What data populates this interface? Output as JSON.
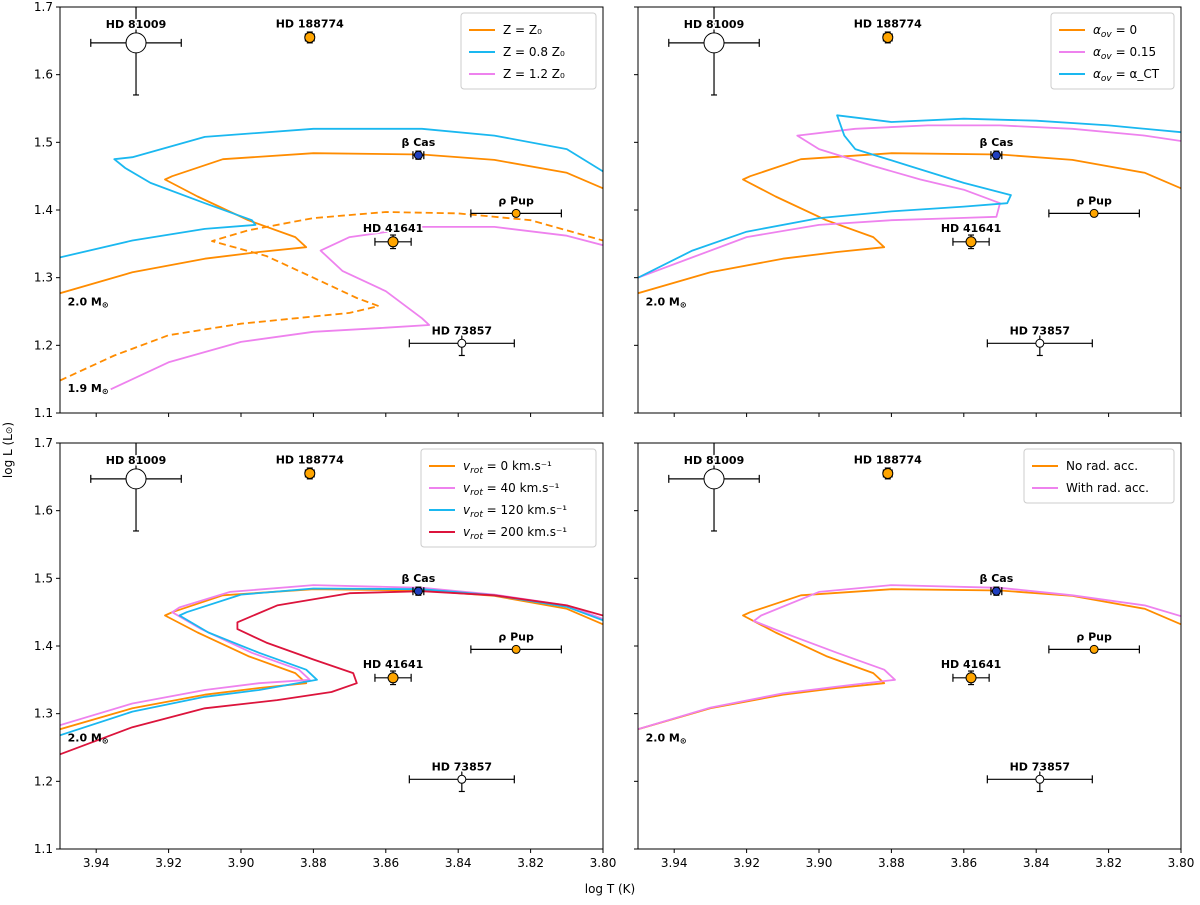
{
  "figure": {
    "xlabel": "log T (K)",
    "ylabel": "log L (L",
    "ylabel_symbol": "⊙",
    "ylabel_close": ")"
  },
  "chart_data": [
    {
      "type": "line",
      "panel": "top-left",
      "xlim": [
        3.95,
        3.8
      ],
      "ylim": [
        1.1,
        1.7
      ],
      "xticks": [
        3.94,
        3.92,
        3.9,
        3.88,
        3.86,
        3.84,
        3.82,
        3.8
      ],
      "yticks": [
        1.1,
        1.2,
        1.3,
        1.4,
        1.5,
        1.6,
        1.7
      ],
      "show_xticklabels": false,
      "show_yticklabels": true,
      "legend": {
        "position": "top-right",
        "entries": [
          {
            "series": 0,
            "label": "Z = Z₀"
          },
          {
            "series": 1,
            "label": "Z = 0.8 Z₀"
          },
          {
            "series": 2,
            "label": "Z = 1.2 Z₀"
          }
        ]
      },
      "series": [
        {
          "name": "Z = Z0 (2.0 Msun)",
          "color": "#ff8c00",
          "dash": false,
          "x": [
            3.95,
            3.93,
            3.91,
            3.895,
            3.882,
            3.885,
            3.898,
            3.912,
            3.921,
            3.919,
            3.905,
            3.88,
            3.85,
            3.83,
            3.81,
            3.8
          ],
          "y": [
            1.277,
            1.308,
            1.328,
            1.338,
            1.345,
            1.36,
            1.385,
            1.42,
            1.445,
            1.45,
            1.475,
            1.484,
            1.482,
            1.474,
            1.455,
            1.432
          ]
        },
        {
          "name": "Z = 0.8 Z0",
          "color": "#1ab8f0",
          "dash": false,
          "x": [
            3.95,
            3.93,
            3.91,
            3.896,
            3.897,
            3.91,
            3.925,
            3.932,
            3.935,
            3.93,
            3.91,
            3.88,
            3.85,
            3.83,
            3.81,
            3.8
          ],
          "y": [
            1.33,
            1.355,
            1.372,
            1.378,
            1.385,
            1.41,
            1.44,
            1.462,
            1.475,
            1.478,
            1.508,
            1.52,
            1.52,
            1.51,
            1.49,
            1.457
          ]
        },
        {
          "name": "Z = 1.2 Z0 (1.9 Msun)",
          "color": "#ee82ee",
          "dash": false,
          "x": [
            3.936,
            3.92,
            3.9,
            3.88,
            3.86,
            3.848,
            3.85,
            3.86,
            3.872,
            3.878,
            3.87,
            3.85,
            3.83,
            3.81,
            3.8
          ],
          "y": [
            1.135,
            1.175,
            1.205,
            1.22,
            1.226,
            1.23,
            1.24,
            1.28,
            1.31,
            1.34,
            1.36,
            1.375,
            1.375,
            1.362,
            1.348
          ]
        },
        {
          "name": "Z = Z0 (1.9 Msun)",
          "color": "#ff8c00",
          "dash": true,
          "x": [
            3.95,
            3.935,
            3.92,
            3.9,
            3.885,
            3.87,
            3.862,
            3.868,
            3.88,
            3.893,
            3.908,
            3.898,
            3.88,
            3.86,
            3.84,
            3.82,
            3.8
          ],
          "y": [
            1.148,
            1.185,
            1.215,
            1.232,
            1.24,
            1.248,
            1.258,
            1.27,
            1.3,
            1.332,
            1.354,
            1.37,
            1.388,
            1.397,
            1.395,
            1.385,
            1.355
          ]
        }
      ],
      "stars": [
        {
          "name": "HD 81009",
          "x": 3.929,
          "y": 1.647,
          "xerr": 0.0125,
          "yerr": 0.077,
          "color": "#ffffff",
          "r": 10
        },
        {
          "name": "HD 188774",
          "x": 3.881,
          "y": 1.655,
          "xerr": 0.0012,
          "yerr": 0.008,
          "color": "#ffa500",
          "r": 5
        },
        {
          "name": "β Cas",
          "x": 3.851,
          "y": 1.481,
          "xerr": 0.0015,
          "yerr": 0.006,
          "color": "#1f3fbf",
          "r": 4
        },
        {
          "name": "ρ Pup",
          "x": 3.824,
          "y": 1.395,
          "xerr": 0.0125,
          "yerr": 0.0,
          "color": "#ffa500",
          "r": 4
        },
        {
          "name": "HD 41641",
          "x": 3.858,
          "y": 1.353,
          "xerr": 0.005,
          "yerr": 0.01,
          "color": "#ffa500",
          "r": 5
        },
        {
          "name": "HD 73857",
          "x": 3.839,
          "y": 1.203,
          "xerr": 0.0145,
          "yerr": 0.018,
          "color": "#ffffff",
          "r": 4
        }
      ],
      "mass_labels": [
        {
          "text": "2.0 M",
          "x": 3.949,
          "y": 1.265
        },
        {
          "text": "1.9 M",
          "x": 3.949,
          "y": 1.137
        }
      ]
    },
    {
      "type": "line",
      "panel": "top-right",
      "xlim": [
        3.95,
        3.8
      ],
      "ylim": [
        1.1,
        1.7
      ],
      "xticks": [
        3.94,
        3.92,
        3.9,
        3.88,
        3.86,
        3.84,
        3.82,
        3.8
      ],
      "yticks": [
        1.1,
        1.2,
        1.3,
        1.4,
        1.5,
        1.6,
        1.7
      ],
      "show_xticklabels": false,
      "show_yticklabels": false,
      "legend": {
        "position": "top-right",
        "entries": [
          {
            "series": 0,
            "label": "α_ov = 0"
          },
          {
            "series": 1,
            "label": "α_ov = 0.15"
          },
          {
            "series": 2,
            "label": "α_ov = α_CT"
          }
        ]
      },
      "series": [
        {
          "name": "alpha_ov = 0",
          "color": "#ff8c00",
          "dash": false,
          "x": [
            3.95,
            3.93,
            3.91,
            3.895,
            3.882,
            3.885,
            3.898,
            3.912,
            3.921,
            3.919,
            3.905,
            3.88,
            3.85,
            3.83,
            3.81,
            3.8
          ],
          "y": [
            1.277,
            1.308,
            1.328,
            1.338,
            1.345,
            1.36,
            1.385,
            1.42,
            1.445,
            1.45,
            1.475,
            1.484,
            1.482,
            1.474,
            1.455,
            1.432
          ]
        },
        {
          "name": "alpha_ov = 0.15",
          "color": "#ee82ee",
          "dash": false,
          "x": [
            3.95,
            3.935,
            3.92,
            3.9,
            3.88,
            3.862,
            3.851,
            3.85,
            3.86,
            3.872,
            3.885,
            3.9,
            3.906,
            3.89,
            3.87,
            3.85,
            3.83,
            3.81,
            3.8
          ],
          "y": [
            1.3,
            1.33,
            1.36,
            1.378,
            1.385,
            1.388,
            1.39,
            1.41,
            1.43,
            1.445,
            1.465,
            1.49,
            1.51,
            1.52,
            1.525,
            1.525,
            1.52,
            1.51,
            1.502
          ]
        },
        {
          "name": "alpha_ov = alpha_CT",
          "color": "#1ab8f0",
          "dash": false,
          "x": [
            3.95,
            3.935,
            3.92,
            3.9,
            3.88,
            3.86,
            3.848,
            3.847,
            3.86,
            3.875,
            3.89,
            3.893,
            3.895,
            3.88,
            3.86,
            3.84,
            3.82,
            3.8
          ],
          "y": [
            1.3,
            1.34,
            1.368,
            1.388,
            1.398,
            1.405,
            1.41,
            1.422,
            1.44,
            1.465,
            1.49,
            1.51,
            1.54,
            1.53,
            1.535,
            1.532,
            1.525,
            1.515
          ]
        }
      ],
      "stars": [
        {
          "name": "HD 81009",
          "x": 3.929,
          "y": 1.647,
          "xerr": 0.0125,
          "yerr": 0.077,
          "color": "#ffffff",
          "r": 10
        },
        {
          "name": "HD 188774",
          "x": 3.881,
          "y": 1.655,
          "xerr": 0.0012,
          "yerr": 0.008,
          "color": "#ffa500",
          "r": 5
        },
        {
          "name": "β Cas",
          "x": 3.851,
          "y": 1.481,
          "xerr": 0.0015,
          "yerr": 0.006,
          "color": "#1f3fbf",
          "r": 4
        },
        {
          "name": "ρ Pup",
          "x": 3.824,
          "y": 1.395,
          "xerr": 0.0125,
          "yerr": 0.0,
          "color": "#ffa500",
          "r": 4
        },
        {
          "name": "HD 41641",
          "x": 3.858,
          "y": 1.353,
          "xerr": 0.005,
          "yerr": 0.01,
          "color": "#ffa500",
          "r": 5
        },
        {
          "name": "HD 73857",
          "x": 3.839,
          "y": 1.203,
          "xerr": 0.0145,
          "yerr": 0.018,
          "color": "#ffffff",
          "r": 4
        }
      ],
      "mass_labels": [
        {
          "text": "2.0 M",
          "x": 3.949,
          "y": 1.265
        }
      ]
    },
    {
      "type": "line",
      "panel": "bottom-left",
      "xlim": [
        3.95,
        3.8
      ],
      "ylim": [
        1.1,
        1.7
      ],
      "xticks": [
        3.94,
        3.92,
        3.9,
        3.88,
        3.86,
        3.84,
        3.82,
        3.8
      ],
      "yticks": [
        1.1,
        1.2,
        1.3,
        1.4,
        1.5,
        1.6,
        1.7
      ],
      "show_xticklabels": true,
      "show_yticklabels": true,
      "legend": {
        "position": "top-right",
        "entries": [
          {
            "series": 0,
            "label": "v_rot = 0 km.s⁻¹"
          },
          {
            "series": 1,
            "label": "v_rot = 40 km.s⁻¹"
          },
          {
            "series": 2,
            "label": "v_rot = 120 km.s⁻¹"
          },
          {
            "series": 3,
            "label": "v_rot = 200 km.s⁻¹"
          }
        ]
      },
      "series": [
        {
          "name": "v_rot = 0 km/s",
          "color": "#ff8c00",
          "dash": false,
          "x": [
            3.95,
            3.93,
            3.91,
            3.895,
            3.882,
            3.885,
            3.898,
            3.912,
            3.921,
            3.919,
            3.905,
            3.88,
            3.85,
            3.83,
            3.81,
            3.8
          ],
          "y": [
            1.277,
            1.308,
            1.328,
            1.338,
            1.345,
            1.36,
            1.385,
            1.42,
            1.445,
            1.45,
            1.475,
            1.484,
            1.482,
            1.474,
            1.455,
            1.432
          ]
        },
        {
          "name": "v_rot = 40 km/s",
          "color": "#ee82ee",
          "dash": false,
          "x": [
            3.95,
            3.93,
            3.91,
            3.895,
            3.881,
            3.884,
            3.897,
            3.911,
            3.919,
            3.917,
            3.903,
            3.88,
            3.85,
            3.83,
            3.81,
            3.8
          ],
          "y": [
            1.283,
            1.315,
            1.335,
            1.345,
            1.35,
            1.365,
            1.39,
            1.425,
            1.45,
            1.457,
            1.48,
            1.49,
            1.486,
            1.476,
            1.46,
            1.44
          ]
        },
        {
          "name": "v_rot = 120 km/s",
          "color": "#1ab8f0",
          "dash": false,
          "x": [
            3.95,
            3.93,
            3.91,
            3.895,
            3.879,
            3.882,
            3.895,
            3.909,
            3.917,
            3.915,
            3.9,
            3.88,
            3.85,
            3.83,
            3.81,
            3.8
          ],
          "y": [
            1.268,
            1.303,
            1.325,
            1.335,
            1.35,
            1.365,
            1.39,
            1.42,
            1.445,
            1.45,
            1.476,
            1.485,
            1.484,
            1.475,
            1.458,
            1.438
          ]
        },
        {
          "name": "v_rot = 200 km/s",
          "color": "#dc143c",
          "dash": false,
          "x": [
            3.95,
            3.93,
            3.91,
            3.89,
            3.875,
            3.868,
            3.869,
            3.88,
            3.893,
            3.901,
            3.901,
            3.89,
            3.87,
            3.85,
            3.83,
            3.81,
            3.8
          ],
          "y": [
            1.24,
            1.28,
            1.308,
            1.32,
            1.332,
            1.345,
            1.36,
            1.38,
            1.405,
            1.425,
            1.435,
            1.46,
            1.478,
            1.481,
            1.475,
            1.46,
            1.445
          ]
        }
      ],
      "stars": [
        {
          "name": "HD 81009",
          "x": 3.929,
          "y": 1.647,
          "xerr": 0.0125,
          "yerr": 0.077,
          "color": "#ffffff",
          "r": 10
        },
        {
          "name": "HD 188774",
          "x": 3.881,
          "y": 1.655,
          "xerr": 0.0012,
          "yerr": 0.008,
          "color": "#ffa500",
          "r": 5
        },
        {
          "name": "β Cas",
          "x": 3.851,
          "y": 1.481,
          "xerr": 0.0015,
          "yerr": 0.006,
          "color": "#1f3fbf",
          "r": 4
        },
        {
          "name": "ρ Pup",
          "x": 3.824,
          "y": 1.395,
          "xerr": 0.0125,
          "yerr": 0.0,
          "color": "#ffa500",
          "r": 4
        },
        {
          "name": "HD 41641",
          "x": 3.858,
          "y": 1.353,
          "xerr": 0.005,
          "yerr": 0.01,
          "color": "#ffa500",
          "r": 5
        },
        {
          "name": "HD 73857",
          "x": 3.839,
          "y": 1.203,
          "xerr": 0.0145,
          "yerr": 0.018,
          "color": "#ffffff",
          "r": 4
        }
      ],
      "mass_labels": [
        {
          "text": "2.0 M",
          "x": 3.949,
          "y": 1.265
        }
      ]
    },
    {
      "type": "line",
      "panel": "bottom-right",
      "xlim": [
        3.95,
        3.8
      ],
      "ylim": [
        1.1,
        1.7
      ],
      "xticks": [
        3.94,
        3.92,
        3.9,
        3.88,
        3.86,
        3.84,
        3.82,
        3.8
      ],
      "yticks": [
        1.1,
        1.2,
        1.3,
        1.4,
        1.5,
        1.6,
        1.7
      ],
      "show_xticklabels": true,
      "show_yticklabels": false,
      "legend": {
        "position": "top-right",
        "entries": [
          {
            "series": 0,
            "label": "No rad. acc."
          },
          {
            "series": 1,
            "label": "With rad. acc."
          }
        ]
      },
      "series": [
        {
          "name": "No rad. acc.",
          "color": "#ff8c00",
          "dash": false,
          "x": [
            3.95,
            3.93,
            3.91,
            3.895,
            3.882,
            3.885,
            3.898,
            3.912,
            3.921,
            3.919,
            3.905,
            3.88,
            3.85,
            3.83,
            3.81,
            3.8
          ],
          "y": [
            1.277,
            1.308,
            1.328,
            1.338,
            1.345,
            1.36,
            1.385,
            1.42,
            1.445,
            1.45,
            1.475,
            1.484,
            1.482,
            1.474,
            1.455,
            1.432
          ]
        },
        {
          "name": "With rad. acc.",
          "color": "#ee82ee",
          "dash": false,
          "x": [
            3.95,
            3.93,
            3.91,
            3.895,
            3.879,
            3.882,
            3.895,
            3.91,
            3.918,
            3.916,
            3.9,
            3.88,
            3.85,
            3.83,
            3.81,
            3.8
          ],
          "y": [
            1.277,
            1.309,
            1.33,
            1.34,
            1.35,
            1.365,
            1.39,
            1.42,
            1.437,
            1.445,
            1.48,
            1.49,
            1.486,
            1.475,
            1.46,
            1.444
          ]
        }
      ],
      "stars": [
        {
          "name": "HD 81009",
          "x": 3.929,
          "y": 1.647,
          "xerr": 0.0125,
          "yerr": 0.077,
          "color": "#ffffff",
          "r": 10
        },
        {
          "name": "HD 188774",
          "x": 3.881,
          "y": 1.655,
          "xerr": 0.0012,
          "yerr": 0.008,
          "color": "#ffa500",
          "r": 5
        },
        {
          "name": "β Cas",
          "x": 3.851,
          "y": 1.481,
          "xerr": 0.0015,
          "yerr": 0.006,
          "color": "#1f3fbf",
          "r": 4
        },
        {
          "name": "ρ Pup",
          "x": 3.824,
          "y": 1.395,
          "xerr": 0.0125,
          "yerr": 0.0,
          "color": "#ffa500",
          "r": 4
        },
        {
          "name": "HD 41641",
          "x": 3.858,
          "y": 1.353,
          "xerr": 0.005,
          "yerr": 0.01,
          "color": "#ffa500",
          "r": 5
        },
        {
          "name": "HD 73857",
          "x": 3.839,
          "y": 1.203,
          "xerr": 0.0145,
          "yerr": 0.018,
          "color": "#ffffff",
          "r": 4
        }
      ],
      "mass_labels": [
        {
          "text": "2.0 M",
          "x": 3.949,
          "y": 1.265
        }
      ]
    }
  ]
}
